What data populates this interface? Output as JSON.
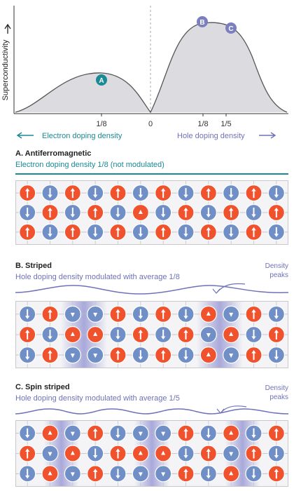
{
  "top_chart": {
    "ylabel": "Supercon­ductivity",
    "ticks": [
      "1/8",
      "0",
      "1/8",
      "1/5"
    ],
    "points": [
      {
        "label": "A",
        "color": "#1a8a96"
      },
      {
        "label": "B",
        "color": "#7b7fc0"
      },
      {
        "label": "C",
        "color": "#7b7fc0"
      }
    ],
    "electron_label": "Electron doping density",
    "hole_label": "Hole doping density"
  },
  "panels": {
    "a": {
      "title": "A. Antiferromagnetic",
      "subtitle": "Electron doping density 1/8 (not modulated)",
      "rows": [
        [
          "ru",
          "bd",
          "ru",
          "bd",
          "ru",
          "bd",
          "ru",
          "bd",
          "ru",
          "bd",
          "ru",
          "bd"
        ],
        [
          "bd",
          "ru",
          "bd",
          "ru",
          "bd",
          "rs",
          "bd",
          "ru",
          "bd",
          "ru",
          "bd",
          "ru"
        ],
        [
          "ru",
          "bd",
          "ru",
          "bd",
          "ru",
          "bd",
          "ru",
          "bd",
          "ru",
          "bd",
          "ru",
          "bd"
        ]
      ]
    },
    "b": {
      "title": "B. Striped",
      "subtitle": "Hole doping density modulated with average 1/8",
      "peaks_label_1": "Density",
      "peaks_label_2": "peaks",
      "rows": [
        [
          "bd",
          "ru",
          "bs",
          "bs",
          "ru",
          "bd",
          "ru",
          "bd",
          "rs",
          "bs",
          "ru",
          "bd"
        ],
        [
          "ru",
          "bd",
          "rs",
          "rs",
          "bd",
          "ru",
          "bd",
          "ru",
          "bs",
          "rs",
          "bd",
          "ru"
        ],
        [
          "bd",
          "ru",
          "bs",
          "bs",
          "ru",
          "bd",
          "ru",
          "bd",
          "rs",
          "bs",
          "ru",
          "bd"
        ]
      ]
    },
    "c": {
      "title": "C. Spin striped",
      "subtitle": "Hole doping density modulated with average 1/5",
      "peaks_label_1": "Density",
      "peaks_label_2": "peaks",
      "rows": [
        [
          "bd",
          "rs",
          "bs",
          "ru",
          "bd",
          "bs",
          "bs",
          "ru",
          "bd",
          "rs",
          "bd",
          "ru"
        ],
        [
          "ru",
          "bs",
          "rs",
          "bd",
          "ru",
          "rs",
          "rs",
          "bd",
          "ru",
          "bs",
          "ru",
          "bd"
        ],
        [
          "bd",
          "rs",
          "bs",
          "ru",
          "bd",
          "bs",
          "bs",
          "ru",
          "bd",
          "rs",
          "bd",
          "ru"
        ]
      ]
    }
  },
  "colors": {
    "red": "#f0522d",
    "blue": "#6f8fc6",
    "stripe": "#9b9bd6",
    "teal": "#1a8a96",
    "purple": "#6f72b8"
  }
}
